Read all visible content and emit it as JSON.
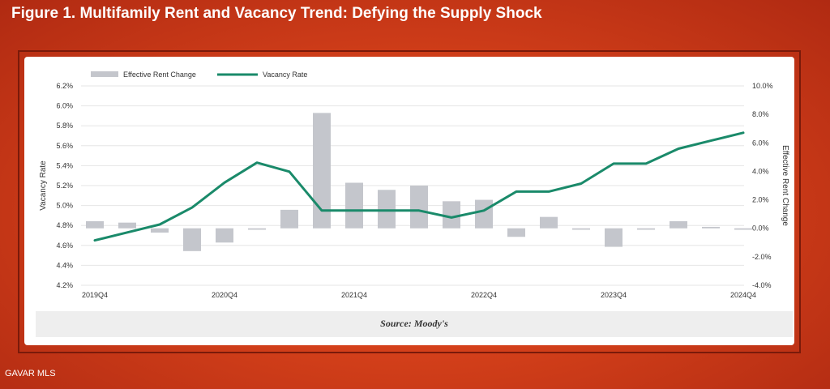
{
  "figure_title": "Figure 1. Multifamily Rent and Vacancy Trend: Defying the Supply Shock",
  "source": "Source: Moody's",
  "watermark": "GAVAR MLS",
  "colors": {
    "bar": "#c4c6cc",
    "line": "#1a8a6a",
    "grid": "#e6e6e6"
  },
  "chart_data": {
    "type": "bar+line",
    "categories": [
      "2019Q4",
      "2020Q1",
      "2020Q2",
      "2020Q3",
      "2020Q4",
      "2021Q1",
      "2021Q2",
      "2021Q3",
      "2021Q4",
      "2022Q1",
      "2022Q2",
      "2022Q3",
      "2022Q4",
      "2023Q1",
      "2023Q2",
      "2023Q3",
      "2023Q4",
      "2024Q1",
      "2024Q2",
      "2024Q3",
      "2024Q4"
    ],
    "x_tick_labels": [
      "2019Q4",
      "2020Q4",
      "2021Q4",
      "2022Q4",
      "2023Q4",
      "2024Q4"
    ],
    "series": [
      {
        "name": "Effective Rent Change",
        "axis": "right",
        "type": "bar",
        "values": [
          0.5,
          0.4,
          -0.3,
          -1.6,
          -1.0,
          -0.1,
          1.3,
          8.1,
          3.2,
          2.7,
          3.0,
          1.9,
          2.0,
          -0.6,
          0.8,
          -0.1,
          -1.3,
          -0.1,
          0.5,
          0.1,
          -0.1
        ]
      },
      {
        "name": "Vacancy Rate",
        "axis": "left",
        "type": "line",
        "values": [
          4.65,
          4.73,
          4.81,
          4.98,
          5.23,
          5.43,
          5.34,
          4.95,
          4.95,
          4.95,
          4.95,
          4.88,
          4.95,
          5.14,
          5.14,
          5.22,
          5.42,
          5.42,
          5.57,
          5.65,
          5.73
        ]
      }
    ],
    "left_axis": {
      "label": "Vacancy Rate",
      "min": 4.2,
      "max": 6.2,
      "ticks": [
        "4.2%",
        "4.4%",
        "4.6%",
        "4.8%",
        "5.0%",
        "5.2%",
        "5.4%",
        "5.6%",
        "5.8%",
        "6.0%",
        "6.2%"
      ]
    },
    "right_axis": {
      "label": "Effective Rent Change",
      "min": -4.0,
      "max": 10.0,
      "ticks": [
        "-4.0%",
        "-2.0%",
        "0.0%",
        "2.0%",
        "4.0%",
        "6.0%",
        "8.0%",
        "10.0%"
      ]
    },
    "legend": {
      "placement": "top-left",
      "entries": [
        "Effective Rent Change",
        "Vacancy Rate"
      ]
    },
    "grid": true
  }
}
